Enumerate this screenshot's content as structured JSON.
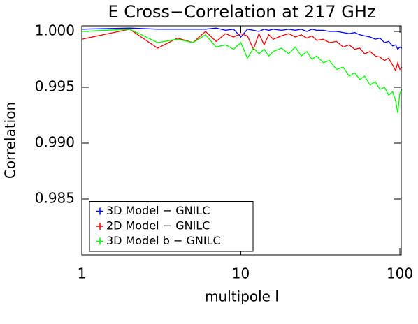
{
  "chart_data": {
    "type": "line",
    "title": "E Cross−Correlation at 217 GHz",
    "xlabel": "multipole l",
    "ylabel": "Correlation",
    "xscale": "log",
    "xlim": [
      1,
      102
    ],
    "xticks": [
      1,
      10,
      100
    ],
    "ylim": [
      0.98,
      1.0005
    ],
    "yticks": [
      {
        "value": 0.985,
        "label": "0.985"
      },
      {
        "value": 0.99,
        "label": "0.990"
      },
      {
        "value": 0.995,
        "label": "0.995"
      },
      {
        "value": 1.0,
        "label": "1.000"
      }
    ],
    "legend": "lower left",
    "x": [
      1,
      2,
      3,
      4,
      5,
      6,
      7,
      8,
      9,
      10,
      11,
      12,
      13,
      14,
      15,
      16,
      18,
      20,
      22,
      24,
      26,
      28,
      30,
      33,
      36,
      40,
      44,
      48,
      52,
      56,
      60,
      65,
      70,
      75,
      80,
      85,
      90,
      94,
      97,
      100,
      103
    ],
    "series": [
      {
        "name": "3D Model − GNILC",
        "color": "#0000ff",
        "values": [
          1.0002,
          1.0003,
          1.0002,
          1.0002,
          1.0002,
          1.0002,
          1.0003,
          1.0001,
          1.0002,
          0.9995,
          1.0002,
          1.0001,
          1.0,
          1.0002,
          1.0001,
          1.0002,
          1.0001,
          1.0002,
          1.0001,
          1.0002,
          1.0,
          1.0002,
          1.0001,
          1.0001,
          1.0,
          1.0,
          0.9999,
          0.9998,
          0.9999,
          0.9997,
          0.9996,
          0.9995,
          0.9993,
          0.9994,
          0.999,
          0.9991,
          0.9987,
          0.9988,
          0.9984,
          0.9986,
          0.9985
        ]
      },
      {
        "name": "2D Model − GNILC",
        "color": "#ff0000",
        "values": [
          0.9993,
          1.0002,
          0.9985,
          0.9994,
          0.999,
          1.0,
          0.9991,
          0.9998,
          0.9995,
          0.9998,
          0.9996,
          0.9984,
          0.9998,
          0.9988,
          0.9997,
          0.9993,
          0.9996,
          0.9998,
          0.9995,
          0.9997,
          0.9994,
          0.9996,
          0.9992,
          0.9993,
          0.999,
          0.9991,
          0.9986,
          0.9988,
          0.9984,
          0.9985,
          0.998,
          0.9982,
          0.9978,
          0.9977,
          0.9974,
          0.9976,
          0.997,
          0.9965,
          0.9972,
          0.9966,
          0.9968
        ]
      },
      {
        "name": "3D Model b − GNILC",
        "color": "#00ff00",
        "values": [
          1.0,
          1.0002,
          0.999,
          0.9993,
          0.999,
          0.9997,
          0.9986,
          0.9988,
          0.9984,
          0.999,
          0.9976,
          0.9985,
          0.998,
          0.9984,
          0.9978,
          0.9982,
          0.9985,
          0.998,
          0.9986,
          0.9978,
          0.9982,
          0.9975,
          0.9978,
          0.9972,
          0.9974,
          0.9966,
          0.9968,
          0.996,
          0.9963,
          0.9957,
          0.996,
          0.9952,
          0.9955,
          0.9948,
          0.995,
          0.9943,
          0.9946,
          0.9938,
          0.9927,
          0.9945,
          0.9948
        ]
      }
    ]
  }
}
